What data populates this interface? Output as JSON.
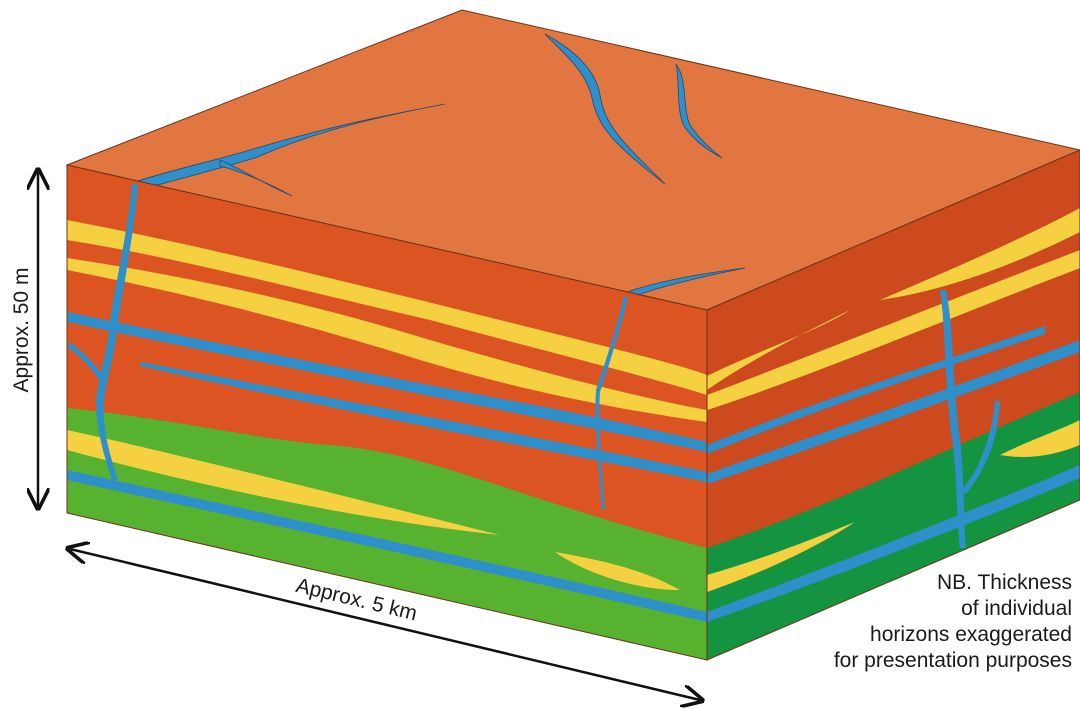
{
  "labels": {
    "vertical_scale": "Approx. 50 m",
    "horizontal_scale": "Approx. 5 km"
  },
  "note_lines": [
    "NB. Thickness",
    "of individual",
    "horizons exaggerated",
    "for presentation purposes"
  ],
  "colors": {
    "top_surface": "#e27640",
    "clay_front": "#dd5423",
    "clay_side": "#cc4a1d",
    "sand_front": "#56b22f",
    "sand_side": "#149441",
    "yellow_lens": "#f5d142",
    "blue_channel": "#2e8fcb",
    "channel_outline": "#1f4a70",
    "arrow": "#111111"
  }
}
